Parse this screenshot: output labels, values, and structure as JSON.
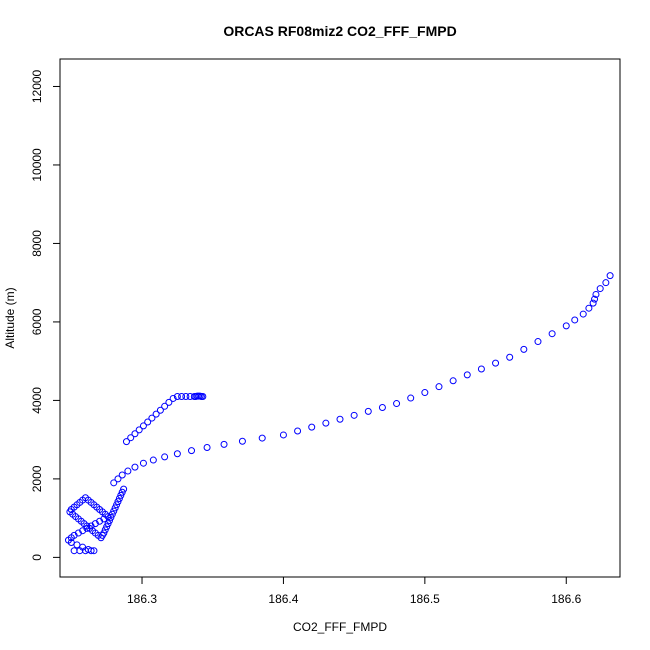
{
  "chart_data": {
    "type": "scatter",
    "title": "ORCAS RF08miz2 CO2_FFF_FMPD",
    "xlabel": "CO2_FFF_FMPD",
    "ylabel": "Altitude (m)",
    "xlim": [
      186.242,
      186.638
    ],
    "ylim": [
      -500,
      12700
    ],
    "xticks": [
      186.3,
      186.4,
      186.5,
      186.6
    ],
    "xtick_labels": [
      "186.3",
      "186.4",
      "186.5",
      "186.6"
    ],
    "yticks": [
      0,
      2000,
      4000,
      6000,
      8000,
      10000,
      12000
    ],
    "ytick_labels": [
      "0",
      "2000",
      "4000",
      "6000",
      "8000",
      "10000",
      "12000"
    ],
    "grid": false,
    "legend": "none",
    "marker": "open-circle",
    "color": "#0000ff",
    "series": [
      {
        "x": [
          186.252,
          186.256,
          186.26,
          186.264,
          186.266,
          186.262,
          186.258,
          186.254,
          186.25,
          186.248,
          186.25,
          186.252,
          186.255,
          186.258,
          186.261,
          186.264,
          186.267,
          186.27,
          186.273,
          186.276,
          186.274,
          186.272,
          186.27,
          186.268,
          186.266,
          186.264,
          186.262,
          186.26,
          186.258,
          186.256,
          186.254,
          186.252,
          186.25,
          186.249,
          186.251,
          186.253,
          186.255,
          186.257,
          186.259,
          186.261,
          186.263,
          186.265,
          186.267,
          186.269,
          186.271,
          186.272,
          186.273,
          186.274,
          186.275,
          186.276,
          186.277,
          186.278,
          186.279,
          186.28,
          186.281,
          186.282,
          186.283,
          186.284,
          186.285,
          186.286,
          186.287,
          186.289,
          186.292,
          186.295,
          186.298,
          186.301,
          186.304,
          186.307,
          186.31,
          186.313,
          186.316,
          186.319,
          186.322,
          186.325,
          186.328,
          186.331,
          186.334,
          186.337,
          186.338,
          186.339,
          186.34,
          186.341,
          186.342,
          186.343
        ],
        "y": [
          170,
          170,
          170,
          170,
          170,
          200,
          260,
          320,
          380,
          440,
          500,
          560,
          620,
          680,
          740,
          800,
          860,
          920,
          980,
          1040,
          1100,
          1160,
          1220,
          1280,
          1340,
          1400,
          1460,
          1520,
          1460,
          1400,
          1340,
          1280,
          1220,
          1160,
          1100,
          1040,
          980,
          920,
          860,
          800,
          740,
          680,
          620,
          560,
          500,
          560,
          620,
          700,
          780,
          860,
          940,
          1020,
          1100,
          1180,
          1260,
          1340,
          1420,
          1500,
          1580,
          1660,
          1740,
          2950,
          3050,
          3150,
          3250,
          3350,
          3450,
          3550,
          3650,
          3750,
          3850,
          3950,
          4050,
          4100,
          4100,
          4100,
          4100,
          4100,
          4100,
          4110,
          4110,
          4110,
          4100,
          4100
        ]
      },
      {
        "x": [
          186.28,
          186.283,
          186.286,
          186.29,
          186.295,
          186.301,
          186.308,
          186.316,
          186.325,
          186.335,
          186.346,
          186.358,
          186.371,
          186.385,
          186.4,
          186.41,
          186.42,
          186.43,
          186.44,
          186.45,
          186.46,
          186.47,
          186.48,
          186.49,
          186.5,
          186.51,
          186.52,
          186.53,
          186.54,
          186.55,
          186.56,
          186.57,
          186.58,
          186.59,
          186.6,
          186.606,
          186.612,
          186.616,
          186.619,
          186.62,
          186.621,
          186.624,
          186.628,
          186.631
        ],
        "y": [
          1900,
          2000,
          2100,
          2200,
          2300,
          2400,
          2480,
          2560,
          2640,
          2720,
          2800,
          2880,
          2960,
          3040,
          3120,
          3220,
          3320,
          3420,
          3520,
          3620,
          3720,
          3820,
          3920,
          4060,
          4200,
          4350,
          4500,
          4650,
          4800,
          4950,
          5100,
          5300,
          5500,
          5700,
          5900,
          6050,
          6200,
          6350,
          6480,
          6580,
          6700,
          6850,
          7000,
          7180
        ]
      }
    ]
  }
}
